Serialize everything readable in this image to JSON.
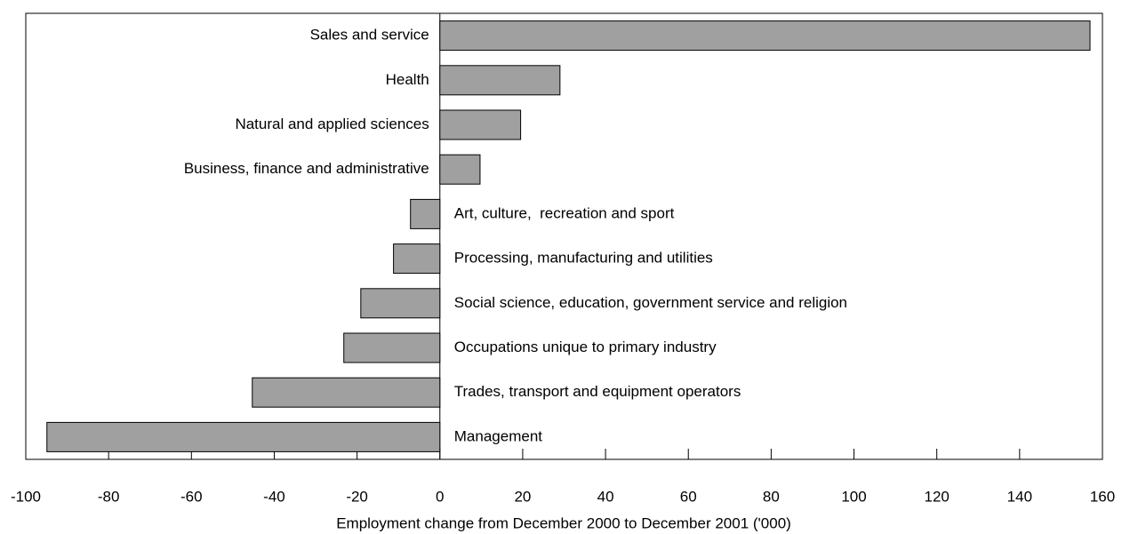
{
  "chart_data": {
    "type": "bar",
    "orientation": "horizontal",
    "categories": [
      "Sales and service",
      "Health",
      "Natural and applied sciences",
      "Business, finance and administrative",
      "Art, culture,  recreation and sport",
      "Processing, manufacturing and utilities",
      "Social science, education, government service and religion",
      "Occupations unique to primary industry",
      "Trades, transport and equipment operators",
      "Management"
    ],
    "values": [
      157,
      29,
      19.5,
      9.7,
      -7.1,
      -11.2,
      -19.1,
      -23.2,
      -45.3,
      -94.9
    ],
    "color": "#a0a0a0",
    "xlim": [
      -100,
      160
    ],
    "xticks": [
      -100,
      -80,
      -60,
      -40,
      -20,
      0,
      20,
      40,
      60,
      80,
      100,
      120,
      140,
      160
    ],
    "xlabel": "Employment change from December 2000 to December 2001 ('000)",
    "grid": false
  }
}
